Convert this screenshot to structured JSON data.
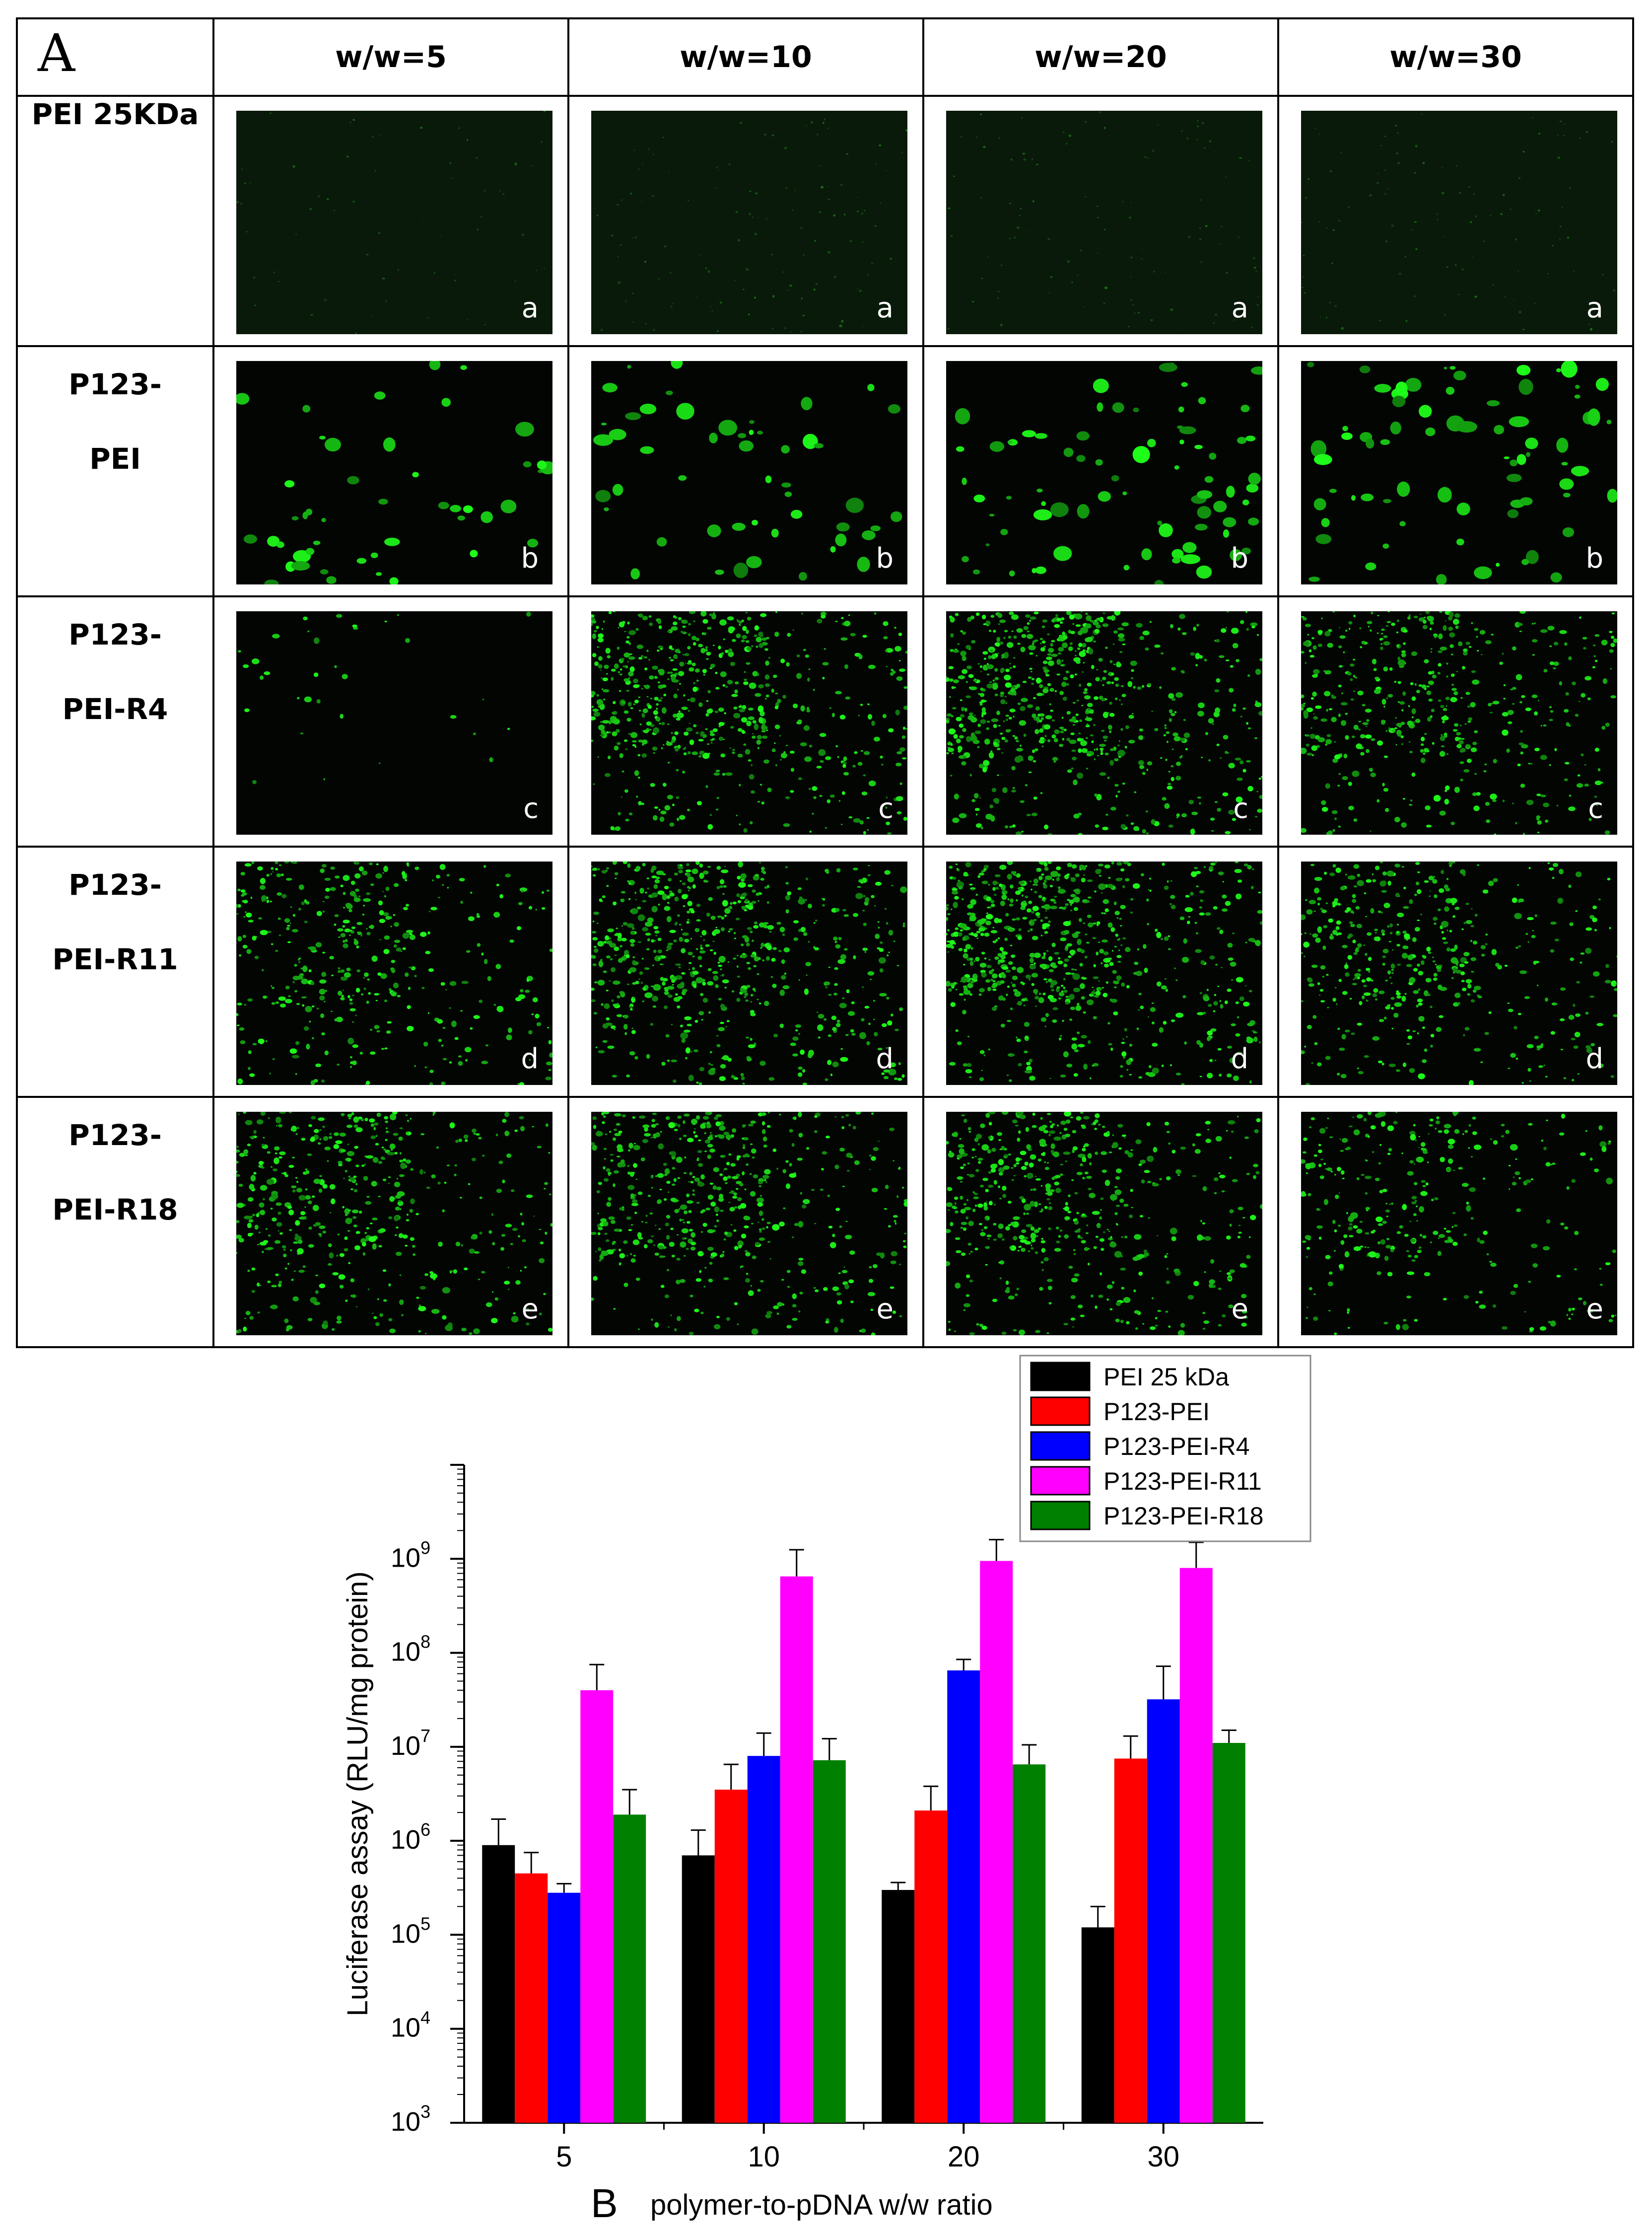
{
  "panel_a": {
    "label": "A",
    "columns": [
      "w/w=5",
      "w/w=10",
      "w/w=20",
      "w/w=30"
    ],
    "rows": [
      {
        "label_lines": [
          "PEI 25KDa"
        ],
        "letter": "a",
        "brightness": [
          0.05,
          0.12,
          0.1,
          0.1
        ]
      },
      {
        "label_lines": [
          "P123-",
          "PEI"
        ],
        "letter": "b",
        "brightness": [
          0.3,
          0.35,
          0.75,
          0.7
        ]
      },
      {
        "label_lines": [
          "P123-",
          "PEI-R4"
        ],
        "letter": "c",
        "brightness": [
          0.02,
          0.7,
          0.8,
          0.55
        ]
      },
      {
        "label_lines": [
          "P123-",
          "PEI-R11"
        ],
        "letter": "d",
        "brightness": [
          0.45,
          0.75,
          0.85,
          0.5
        ]
      },
      {
        "label_lines": [
          "P123-",
          "PEI-R18"
        ],
        "letter": "e",
        "brightness": [
          0.55,
          0.6,
          0.6,
          0.35
        ]
      }
    ]
  },
  "chart_data": {
    "type": "bar",
    "panel_label": "B",
    "xlabel": "polymer-to-pDNA w/w ratio",
    "ylabel": "Luciferase assay (RLU/mg protein)",
    "yscale": "log",
    "ylim": [
      1000,
      10000000000
    ],
    "ytick_exponents": [
      3,
      4,
      5,
      6,
      7,
      8,
      9
    ],
    "categories": [
      "5",
      "10",
      "20",
      "30"
    ],
    "legend_position": "top-right",
    "series": [
      {
        "name": "PEI 25 kDa",
        "color": "#000000",
        "values": [
          900000,
          700000,
          300000,
          120000
        ],
        "errors": [
          800000,
          600000,
          60000,
          80000
        ]
      },
      {
        "name": "P123-PEI",
        "color": "#ff0000",
        "values": [
          450000,
          3500000,
          2100000,
          7500000
        ],
        "errors": [
          300000,
          3000000,
          1700000,
          5500000
        ]
      },
      {
        "name": "P123-PEI-R4",
        "color": "#0000ff",
        "values": [
          280000,
          8000000,
          65000000,
          32000000
        ],
        "errors": [
          70000,
          6000000,
          20000000,
          40000000
        ]
      },
      {
        "name": "P123-PEI-R11",
        "color": "#ff00ff",
        "values": [
          40000000,
          650000000,
          950000000,
          800000000
        ],
        "errors": [
          35000000,
          600000000,
          650000000,
          700000000
        ]
      },
      {
        "name": "P123-PEI-R18",
        "color": "#008000",
        "values": [
          1900000,
          7200000,
          6500000,
          11000000
        ],
        "errors": [
          1600000,
          5000000,
          4000000,
          4000000
        ]
      }
    ]
  }
}
